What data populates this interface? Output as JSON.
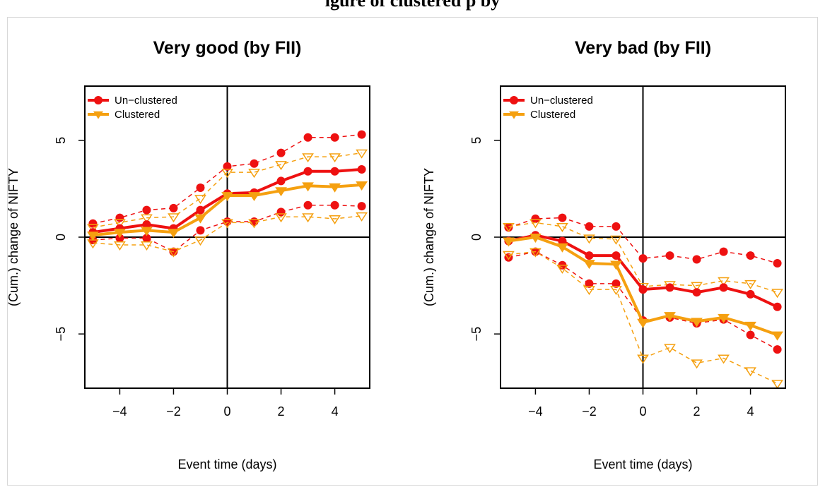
{
  "page": {
    "top_clip_text": "igure                                                   of             clustered            p            by"
  },
  "colors": {
    "unclustered": "#ee1111",
    "clustered": "#f5a010",
    "axis": "#000000"
  },
  "chart_data": [
    {
      "type": "line",
      "title": "Very good (by FII)",
      "xlabel": "Event time (days)",
      "ylabel": "(Cum.) change of NIFTY",
      "xlim": [
        -5.3,
        5.3
      ],
      "ylim": [
        -7.8,
        7.8
      ],
      "xticks": [
        -4,
        -2,
        0,
        2,
        4
      ],
      "xtick_labels": [
        "−4",
        "−2",
        "0",
        "2",
        "4"
      ],
      "yticks": [
        -5,
        0,
        5
      ],
      "ytick_labels": [
        "−5",
        "0",
        "5"
      ],
      "reference_lines": {
        "x": 0,
        "y": 0
      },
      "legend": {
        "position": "top-left",
        "entries": [
          "Un−clustered",
          "Clustered"
        ]
      },
      "x": [
        -5,
        -4,
        -3,
        -2,
        -1,
        0,
        1,
        2,
        3,
        4,
        5
      ],
      "series": [
        {
          "name": "Un−clustered",
          "role": "mean",
          "color": "#ee1111",
          "marker": "filled-circle",
          "line": "solid",
          "values": [
            0.25,
            0.45,
            0.65,
            0.45,
            1.4,
            2.25,
            2.3,
            2.9,
            3.4,
            3.4,
            3.5
          ]
        },
        {
          "role": "upper",
          "color": "#ee1111",
          "marker": "filled-circle",
          "line": "dashed",
          "values": [
            0.7,
            1.0,
            1.4,
            1.5,
            2.55,
            3.65,
            3.8,
            4.35,
            5.15,
            5.15,
            5.3
          ]
        },
        {
          "role": "lower",
          "color": "#ee1111",
          "marker": "filled-circle",
          "line": "dashed",
          "values": [
            -0.15,
            -0.05,
            -0.05,
            -0.75,
            0.35,
            0.8,
            0.8,
            1.3,
            1.65,
            1.65,
            1.6
          ]
        },
        {
          "name": "Clustered",
          "role": "mean",
          "color": "#f5a010",
          "marker": "triangle-down-filled",
          "line": "solid",
          "values": [
            0.1,
            0.25,
            0.35,
            0.25,
            1.0,
            2.15,
            2.15,
            2.4,
            2.65,
            2.6,
            2.7
          ]
        },
        {
          "role": "upper",
          "color": "#f5a010",
          "marker": "triangle-down-open",
          "line": "dashed",
          "values": [
            0.5,
            0.75,
            1.0,
            1.05,
            2.0,
            3.35,
            3.35,
            3.75,
            4.15,
            4.15,
            4.35
          ]
        },
        {
          "role": "lower",
          "color": "#f5a010",
          "marker": "triangle-down-open",
          "line": "dashed",
          "values": [
            -0.3,
            -0.4,
            -0.4,
            -0.75,
            -0.15,
            0.75,
            0.75,
            1.05,
            1.05,
            0.95,
            1.1
          ]
        }
      ]
    },
    {
      "type": "line",
      "title": "Very bad (by FII)",
      "xlabel": "Event time (days)",
      "ylabel": "(Cum.) change of NIFTY",
      "xlim": [
        -5.3,
        5.3
      ],
      "ylim": [
        -7.8,
        7.8
      ],
      "xticks": [
        -4,
        -2,
        0,
        2,
        4
      ],
      "xtick_labels": [
        "−4",
        "−2",
        "0",
        "2",
        "4"
      ],
      "yticks": [
        -5,
        0,
        5
      ],
      "ytick_labels": [
        "−5",
        "0",
        "5"
      ],
      "reference_lines": {
        "x": 0,
        "y": 0
      },
      "legend": {
        "position": "top-left",
        "entries": [
          "Un−clustered",
          "Clustered"
        ]
      },
      "x": [
        -5,
        -4,
        -3,
        -2,
        -1,
        0,
        1,
        2,
        3,
        4,
        5
      ],
      "series": [
        {
          "name": "Un−clustered",
          "role": "mean",
          "color": "#ee1111",
          "marker": "filled-circle",
          "line": "solid",
          "values": [
            -0.2,
            0.1,
            -0.2,
            -0.95,
            -0.95,
            -2.7,
            -2.6,
            -2.85,
            -2.6,
            -2.95,
            -3.6
          ]
        },
        {
          "role": "upper",
          "color": "#ee1111",
          "marker": "filled-circle",
          "line": "dashed",
          "values": [
            0.5,
            0.95,
            1.0,
            0.55,
            0.55,
            -1.1,
            -0.95,
            -1.15,
            -0.75,
            -0.95,
            -1.35
          ]
        },
        {
          "role": "lower",
          "color": "#ee1111",
          "marker": "filled-circle",
          "line": "dashed",
          "values": [
            -1.05,
            -0.75,
            -1.45,
            -2.4,
            -2.4,
            -4.3,
            -4.15,
            -4.45,
            -4.25,
            -5.05,
            -5.8
          ]
        },
        {
          "name": "Clustered",
          "role": "mean",
          "color": "#f5a010",
          "marker": "triangle-down-filled",
          "line": "solid",
          "values": [
            -0.2,
            0.0,
            -0.5,
            -1.35,
            -1.4,
            -4.4,
            -4.05,
            -4.35,
            -4.15,
            -4.55,
            -5.05
          ]
        },
        {
          "role": "upper",
          "color": "#f5a010",
          "marker": "triangle-down-open",
          "line": "dashed",
          "values": [
            0.55,
            0.75,
            0.55,
            -0.05,
            -0.1,
            -2.55,
            -2.45,
            -2.5,
            -2.25,
            -2.4,
            -2.85
          ]
        },
        {
          "role": "lower",
          "color": "#f5a010",
          "marker": "triangle-down-open",
          "line": "dashed",
          "values": [
            -0.9,
            -0.75,
            -1.6,
            -2.7,
            -2.7,
            -6.25,
            -5.7,
            -6.5,
            -6.25,
            -6.9,
            -7.55
          ]
        }
      ]
    }
  ]
}
